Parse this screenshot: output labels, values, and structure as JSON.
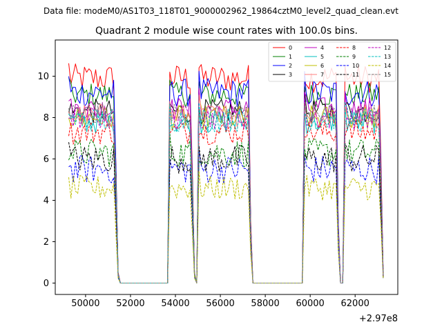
{
  "chart_data": {
    "type": "line",
    "suptitle": "Data file: modeM0/AS1T03_118T01_9000002962_19864cztM0_level2_quad_clean.evt",
    "title": "Quadrant 2 module wise count rates with 100.0s bins.",
    "xlabel": "",
    "ylabel": "",
    "x_offset_label": "+2.97e8",
    "x_offset": 297000000,
    "xlim": [
      48650,
      63900
    ],
    "ylim": [
      -0.55,
      11.75
    ],
    "xticks": [
      50000,
      52000,
      54000,
      56000,
      58000,
      60000,
      62000
    ],
    "xtick_labels": [
      "50000",
      "52000",
      "54000",
      "56000",
      "58000",
      "60000",
      "62000"
    ],
    "yticks": [
      0,
      2,
      4,
      6,
      8,
      10
    ],
    "ytick_labels": [
      "0",
      "2",
      "4",
      "6",
      "8",
      "10"
    ],
    "grid": false,
    "legend_position": "top-right",
    "legend_columns": 4,
    "bin_size_s": 100,
    "segments": [
      {
        "start": 49250,
        "end": 51450
      },
      {
        "start": 53700,
        "end": 54850
      },
      {
        "start": 55050,
        "end": 57400
      },
      {
        "start": 59700,
        "end": 61300
      },
      {
        "start": 61500,
        "end": 63250
      }
    ],
    "gaps_zero_from": [
      51650,
      57550
    ],
    "gaps_zero_to": [
      53700,
      59700
    ],
    "series": [
      {
        "name": "0",
        "color": "#ff0000",
        "dashed": false,
        "level": 9.9,
        "amplitude": 0.35
      },
      {
        "name": "1",
        "color": "#008000",
        "dashed": false,
        "level": 9.1,
        "amplitude": 0.3
      },
      {
        "name": "2",
        "color": "#0000ff",
        "dashed": false,
        "level": 9.2,
        "amplitude": 0.35
      },
      {
        "name": "3",
        "color": "#000000",
        "dashed": false,
        "level": 8.3,
        "amplitude": 0.3
      },
      {
        "name": "4",
        "color": "#bf00bf",
        "dashed": false,
        "level": 8.4,
        "amplitude": 0.3
      },
      {
        "name": "5",
        "color": "#00bfbf",
        "dashed": false,
        "level": 7.8,
        "amplitude": 0.3
      },
      {
        "name": "6",
        "color": "#bfbf00",
        "dashed": false,
        "level": 8.0,
        "amplitude": 0.3
      },
      {
        "name": "7",
        "color": "#ff7f7f",
        "dashed": false,
        "level": 8.1,
        "amplitude": 0.3
      },
      {
        "name": "8",
        "color": "#ff0000",
        "dashed": true,
        "level": 7.3,
        "amplitude": 0.3
      },
      {
        "name": "9",
        "color": "#008000",
        "dashed": true,
        "level": 6.3,
        "amplitude": 0.35
      },
      {
        "name": "10",
        "color": "#0000ff",
        "dashed": true,
        "level": 5.5,
        "amplitude": 0.35
      },
      {
        "name": "11",
        "color": "#000000",
        "dashed": true,
        "level": 6.0,
        "amplitude": 0.35
      },
      {
        "name": "12",
        "color": "#bf00bf",
        "dashed": true,
        "level": 8.0,
        "amplitude": 0.3
      },
      {
        "name": "13",
        "color": "#00bfbf",
        "dashed": true,
        "level": 7.9,
        "amplitude": 0.3
      },
      {
        "name": "14",
        "color": "#bfbf00",
        "dashed": true,
        "level": 4.6,
        "amplitude": 0.3
      },
      {
        "name": "15",
        "color": "#7f7f7f",
        "dashed": true,
        "level": 8.1,
        "amplitude": 0.3
      }
    ]
  }
}
